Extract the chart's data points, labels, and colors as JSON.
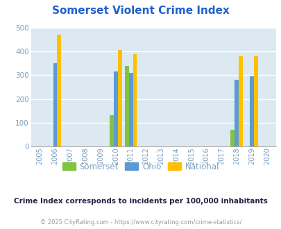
{
  "title": "Somerset Violent Crime Index",
  "title_color": "#2060cc",
  "subtitle": "Crime Index corresponds to incidents per 100,000 inhabitants",
  "footer": "© 2025 CityRating.com - https://www.cityrating.com/crime-statistics/",
  "background_color": "#dce9f0",
  "outer_background": "#ffffff",
  "years": [
    2005,
    2006,
    2007,
    2008,
    2009,
    2010,
    2011,
    2012,
    2013,
    2014,
    2015,
    2016,
    2017,
    2018,
    2019,
    2020
  ],
  "somerset": {
    "2010": 132,
    "2011": 338,
    "2018": 70
  },
  "ohio": {
    "2006": 350,
    "2010": 315,
    "2011": 308,
    "2018": 280,
    "2019": 295
  },
  "national": {
    "2006": 470,
    "2010": 405,
    "2011": 388,
    "2018": 380,
    "2019": 380
  },
  "somerset_color": "#82c341",
  "ohio_color": "#5b9bd5",
  "national_color": "#ffc000",
  "bar_width": 0.27,
  "ylim": [
    0,
    500
  ],
  "yticks": [
    0,
    100,
    200,
    300,
    400,
    500
  ],
  "legend_labels": [
    "Somerset",
    "Ohio",
    "National"
  ],
  "grid_color": "#ffffff",
  "tick_color": "#7f9fbf",
  "subtitle_color": "#222244",
  "footer_color": "#999999",
  "title_fontsize": 11,
  "subtitle_fontsize": 7.5,
  "footer_fontsize": 6.0
}
